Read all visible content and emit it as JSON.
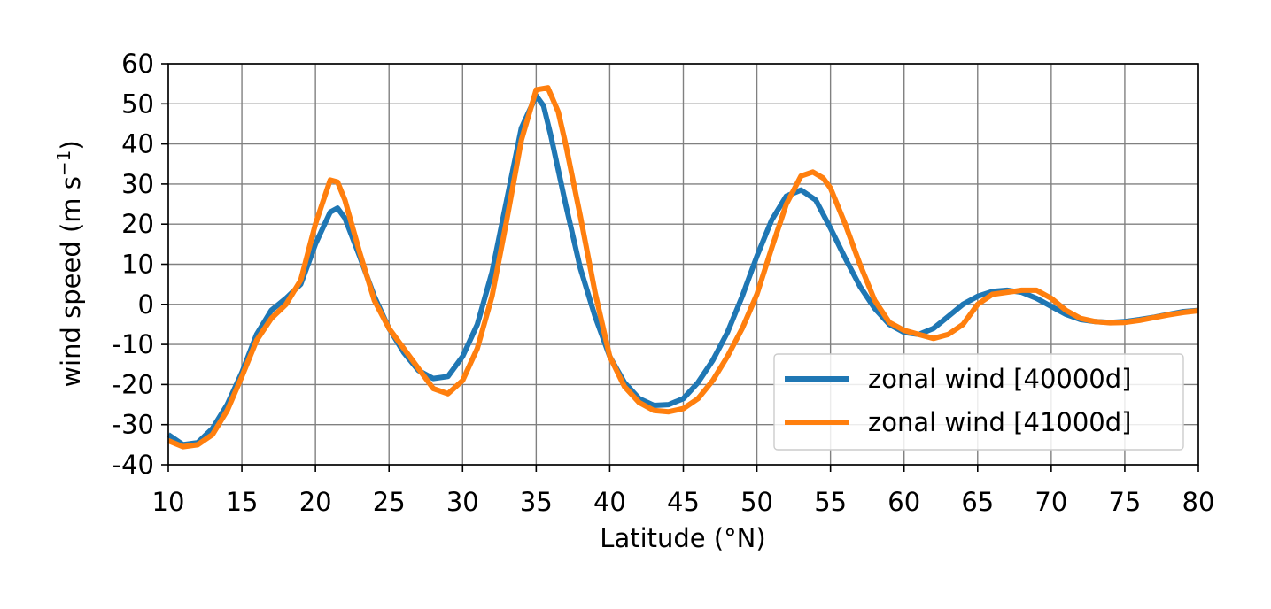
{
  "chart_data": {
    "type": "line",
    "xlabel": "Latitude (°N)",
    "ylabel_main": "wind speed (m s",
    "ylabel_sup": "−1",
    "ylabel_close": ")",
    "xlim": [
      10,
      80
    ],
    "ylim": [
      -40,
      60
    ],
    "xticks": [
      10,
      15,
      20,
      25,
      30,
      35,
      40,
      45,
      50,
      55,
      60,
      65,
      70,
      75,
      80
    ],
    "yticks": [
      -40,
      -30,
      -20,
      -10,
      0,
      10,
      20,
      30,
      40,
      50,
      60
    ],
    "grid": true,
    "legend_position": "lower-right",
    "series": [
      {
        "name": "zonal wind [40000d]",
        "color": "#1f77b4",
        "points": [
          [
            10,
            -32.5
          ],
          [
            11,
            -35
          ],
          [
            12,
            -34.5
          ],
          [
            13,
            -31
          ],
          [
            14,
            -25
          ],
          [
            15,
            -17
          ],
          [
            16,
            -7.5
          ],
          [
            17,
            -1.5
          ],
          [
            18,
            1.5
          ],
          [
            19,
            5
          ],
          [
            20,
            15
          ],
          [
            21,
            23
          ],
          [
            21.5,
            24
          ],
          [
            22,
            21.5
          ],
          [
            23,
            12
          ],
          [
            24,
            2
          ],
          [
            25,
            -6
          ],
          [
            26,
            -12
          ],
          [
            27,
            -16.5
          ],
          [
            28,
            -18.5
          ],
          [
            29,
            -18
          ],
          [
            30,
            -13
          ],
          [
            31,
            -5
          ],
          [
            32,
            8
          ],
          [
            33,
            26
          ],
          [
            34,
            44
          ],
          [
            35,
            52
          ],
          [
            35.5,
            49.5
          ],
          [
            36,
            42
          ],
          [
            37,
            25
          ],
          [
            38,
            9
          ],
          [
            39,
            -3
          ],
          [
            40,
            -13
          ],
          [
            41,
            -19.5
          ],
          [
            42,
            -23.5
          ],
          [
            43,
            -25.2
          ],
          [
            44,
            -25
          ],
          [
            45,
            -23.5
          ],
          [
            46,
            -19.5
          ],
          [
            47,
            -14
          ],
          [
            48,
            -7
          ],
          [
            49,
            2
          ],
          [
            50,
            12
          ],
          [
            51,
            21
          ],
          [
            52,
            27
          ],
          [
            53,
            28.5
          ],
          [
            54,
            26
          ],
          [
            55,
            19
          ],
          [
            56,
            11.5
          ],
          [
            57,
            4.5
          ],
          [
            58,
            -1
          ],
          [
            59,
            -5
          ],
          [
            60,
            -7
          ],
          [
            61,
            -7.5
          ],
          [
            62,
            -6
          ],
          [
            63,
            -3
          ],
          [
            64,
            0
          ],
          [
            65,
            2
          ],
          [
            66,
            3.2
          ],
          [
            67,
            3.5
          ],
          [
            68,
            3
          ],
          [
            69,
            1.5
          ],
          [
            70,
            -0.5
          ],
          [
            71,
            -2.5
          ],
          [
            72,
            -3.8
          ],
          [
            73,
            -4.3
          ],
          [
            74,
            -4.5
          ],
          [
            75,
            -4.3
          ],
          [
            76,
            -3.8
          ],
          [
            77,
            -3.2
          ],
          [
            78,
            -2.5
          ],
          [
            79,
            -1.8
          ],
          [
            80,
            -1.5
          ]
        ]
      },
      {
        "name": "zonal wind [41000d]",
        "color": "#ff7f0e",
        "points": [
          [
            10,
            -34
          ],
          [
            11,
            -35.5
          ],
          [
            12,
            -35
          ],
          [
            13,
            -32.5
          ],
          [
            14,
            -26.5
          ],
          [
            15,
            -18
          ],
          [
            16,
            -9
          ],
          [
            17,
            -3.5
          ],
          [
            18,
            0
          ],
          [
            19,
            6
          ],
          [
            20,
            20
          ],
          [
            21,
            31
          ],
          [
            21.5,
            30.5
          ],
          [
            22,
            26
          ],
          [
            23,
            13
          ],
          [
            24,
            1
          ],
          [
            25,
            -6
          ],
          [
            26,
            -11
          ],
          [
            27,
            -16
          ],
          [
            28,
            -21
          ],
          [
            29,
            -22.3
          ],
          [
            30,
            -19
          ],
          [
            31,
            -11
          ],
          [
            32,
            2
          ],
          [
            33,
            21
          ],
          [
            34,
            41
          ],
          [
            35,
            53.5
          ],
          [
            35.8,
            54
          ],
          [
            36.5,
            48
          ],
          [
            37,
            40
          ],
          [
            38,
            22
          ],
          [
            39,
            3
          ],
          [
            40,
            -13
          ],
          [
            41,
            -20.5
          ],
          [
            42,
            -24.5
          ],
          [
            43,
            -26.5
          ],
          [
            44,
            -26.8
          ],
          [
            45,
            -26
          ],
          [
            46,
            -23.5
          ],
          [
            47,
            -19
          ],
          [
            48,
            -13
          ],
          [
            49,
            -6
          ],
          [
            50,
            2.5
          ],
          [
            51,
            14
          ],
          [
            52,
            25
          ],
          [
            53,
            32
          ],
          [
            53.8,
            33
          ],
          [
            54.5,
            31.5
          ],
          [
            55,
            29
          ],
          [
            56,
            20
          ],
          [
            57,
            10
          ],
          [
            58,
            1
          ],
          [
            59,
            -4.5
          ],
          [
            60,
            -6.5
          ],
          [
            61,
            -7.5
          ],
          [
            62,
            -8.5
          ],
          [
            63,
            -7.5
          ],
          [
            64,
            -5
          ],
          [
            65,
            0
          ],
          [
            66,
            2.5
          ],
          [
            67,
            3
          ],
          [
            68,
            3.5
          ],
          [
            69,
            3.5
          ],
          [
            70,
            1.5
          ],
          [
            71,
            -1.5
          ],
          [
            72,
            -3.5
          ],
          [
            73,
            -4.3
          ],
          [
            74,
            -4.6
          ],
          [
            75,
            -4.5
          ],
          [
            76,
            -4
          ],
          [
            77,
            -3.3
          ],
          [
            78,
            -2.6
          ],
          [
            79,
            -2
          ],
          [
            80,
            -1.6
          ]
        ]
      }
    ]
  }
}
